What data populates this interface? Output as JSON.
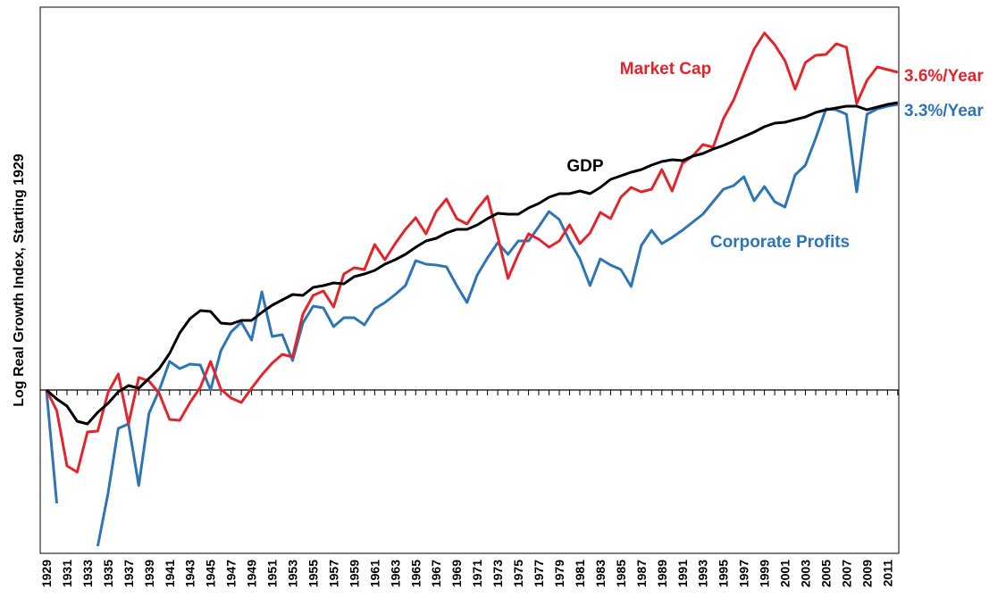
{
  "chart_data": {
    "type": "line",
    "y_label": "Log Real Growth Index, Starting 1929",
    "categories": [
      "1929",
      null,
      "1931",
      null,
      "1933",
      null,
      "1935",
      null,
      "1937",
      null,
      "1939",
      null,
      "1941",
      null,
      "1943",
      null,
      "1945",
      null,
      "1947",
      null,
      "1949",
      null,
      "1951",
      null,
      "1953",
      null,
      "1955",
      null,
      "1957",
      null,
      "1959",
      null,
      "1961",
      null,
      "1963",
      null,
      "1965",
      null,
      "1967",
      null,
      "1969",
      null,
      "1971",
      null,
      "1973",
      null,
      "1975",
      null,
      "1977",
      null,
      "1979",
      null,
      "1981",
      null,
      "1983",
      null,
      "1985",
      null,
      "1987",
      null,
      "1989",
      null,
      "1991",
      null,
      "1993",
      null,
      "1995",
      null,
      "1997",
      null,
      "1999",
      null,
      "2001",
      null,
      "2003",
      null,
      "2005",
      null,
      "2007",
      null,
      "2009",
      null,
      "2011",
      null
    ],
    "ylim": [
      -1.83,
      4.29
    ],
    "series": [
      {
        "name": "Corporate Profits",
        "color": "#2e75b6",
        "annotation": "3.3%/Year",
        "values": [
          0,
          -1.27,
          null,
          null,
          null,
          -1.75,
          -1.16,
          -0.43,
          -0.38,
          -1.07,
          -0.26,
          0,
          0.32,
          0.24,
          0.29,
          0.28,
          0,
          0.44,
          0.65,
          0.76,
          0.56,
          1.1,
          0.6,
          0.62,
          0.33,
          0.75,
          0.94,
          0.92,
          0.71,
          0.81,
          0.81,
          0.73,
          0.91,
          0.98,
          1.07,
          1.17,
          1.45,
          1.41,
          1.4,
          1.38,
          1.17,
          0.98,
          1.29,
          1.48,
          1.65,
          1.52,
          1.67,
          1.67,
          1.83,
          2.0,
          1.91,
          1.67,
          1.47,
          1.17,
          1.47,
          1.4,
          1.35,
          1.16,
          1.62,
          1.79,
          1.64,
          1.71,
          1.79,
          1.88,
          1.97,
          2.11,
          2.25,
          2.29,
          2.39,
          2.12,
          2.28,
          2.11,
          2.05,
          2.41,
          2.52,
          2.82,
          3.15,
          3.14,
          3.09,
          2.22,
          3.09,
          3.15,
          3.18,
          3.2
        ]
      },
      {
        "name": "Market Cap",
        "color": "#e3242b",
        "annotation": "3.6%/Year",
        "values": [
          0,
          -0.23,
          -0.85,
          -0.92,
          -0.47,
          -0.46,
          -0.03,
          0.18,
          -0.38,
          0.14,
          0.1,
          -0.04,
          -0.33,
          -0.34,
          -0.14,
          0.03,
          0.32,
          0.01,
          -0.09,
          -0.14,
          0.02,
          0.17,
          0.3,
          0.4,
          0.37,
          0.85,
          1.06,
          1.11,
          0.93,
          1.3,
          1.37,
          1.35,
          1.63,
          1.46,
          1.64,
          1.8,
          1.93,
          1.75,
          2.0,
          2.14,
          1.92,
          1.86,
          2.03,
          2.17,
          1.72,
          1.25,
          1.52,
          1.75,
          1.69,
          1.6,
          1.67,
          1.85,
          1.64,
          1.76,
          1.99,
          1.92,
          2.16,
          2.27,
          2.22,
          2.25,
          2.47,
          2.23,
          2.54,
          2.62,
          2.75,
          2.72,
          3.04,
          3.25,
          3.54,
          3.82,
          4.0,
          3.87,
          3.69,
          3.37,
          3.67,
          3.75,
          3.76,
          3.88,
          3.84,
          3.21,
          3.47,
          3.62,
          3.59,
          3.56
        ]
      },
      {
        "name": "GDP",
        "color": "#000000",
        "values": [
          0,
          -0.1,
          -0.18,
          -0.35,
          -0.38,
          -0.25,
          -0.15,
          -0.02,
          0.05,
          0.02,
          0.13,
          0.24,
          0.41,
          0.64,
          0.8,
          0.89,
          0.88,
          0.75,
          0.74,
          0.78,
          0.78,
          0.87,
          0.95,
          1.01,
          1.07,
          1.06,
          1.15,
          1.17,
          1.2,
          1.19,
          1.27,
          1.3,
          1.34,
          1.41,
          1.46,
          1.52,
          1.6,
          1.67,
          1.7,
          1.76,
          1.8,
          1.8,
          1.85,
          1.92,
          1.98,
          1.97,
          1.97,
          2.04,
          2.09,
          2.16,
          2.2,
          2.2,
          2.23,
          2.2,
          2.27,
          2.36,
          2.4,
          2.44,
          2.47,
          2.52,
          2.56,
          2.58,
          2.57,
          2.62,
          2.65,
          2.7,
          2.74,
          2.79,
          2.84,
          2.89,
          2.95,
          2.99,
          3.0,
          3.03,
          3.06,
          3.11,
          3.14,
          3.16,
          3.18,
          3.18,
          3.14,
          3.17,
          3.2,
          3.22
        ]
      }
    ]
  }
}
